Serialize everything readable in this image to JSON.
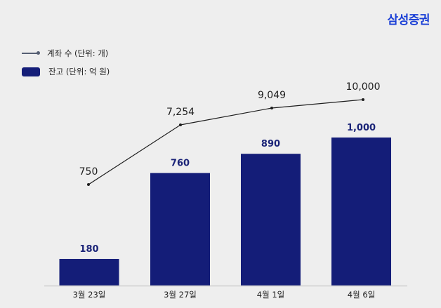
{
  "brand": "삼성증권",
  "legend": {
    "line_label": "계좌 수 (단위: 개)",
    "bar_label": "잔고 (단위: 억 원)"
  },
  "colors": {
    "bar": "#141d78",
    "line": "#1e1e1e",
    "brand": "#1a3fd6",
    "background": "#eeeeee"
  },
  "chart_data": {
    "type": "bar",
    "categories": [
      "3월 23일",
      "3월 27일",
      "4월 1일",
      "4월 6일"
    ],
    "series": [
      {
        "name": "잔고 (단위: 억 원)",
        "type": "bar",
        "values": [
          180,
          760,
          890,
          1000
        ],
        "labels": [
          "180",
          "760",
          "890",
          "1,000"
        ]
      },
      {
        "name": "계좌 수 (단위: 개)",
        "type": "line",
        "values": [
          750,
          7254,
          9049,
          10000
        ],
        "labels": [
          "750",
          "7,254",
          "9,049",
          "10,000"
        ]
      }
    ],
    "title": "",
    "xlabel": "",
    "ylabel": "",
    "grid": false,
    "legend_position": "top-left"
  }
}
